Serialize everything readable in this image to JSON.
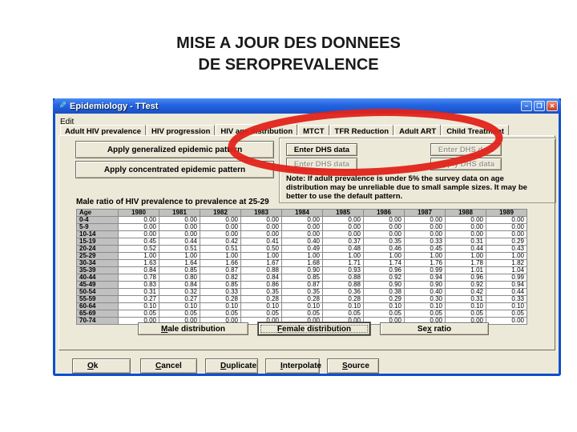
{
  "slide": {
    "title_line1": "MISE A JOUR DES DONNEES",
    "title_line2": "DE SEROPREVALENCE"
  },
  "window": {
    "title": "Epidemiology - TTest",
    "menu": [
      "Edit"
    ],
    "controls": {
      "minimize": "–",
      "maximize": "❐",
      "close": "✕"
    },
    "tabs": [
      {
        "label": "Adult HIV prevalence",
        "active": false
      },
      {
        "label": "HIV progression",
        "active": false
      },
      {
        "label": "HIV age distribution",
        "active": true
      },
      {
        "label": "MTCT",
        "active": false
      },
      {
        "label": "TFR Reduction",
        "active": false
      },
      {
        "label": "Adult ART",
        "active": false
      },
      {
        "label": "Child Treatment",
        "active": false
      }
    ]
  },
  "pattern_buttons": {
    "generalized": "Apply generalized epidemic pattern",
    "concentrated": "Apply concentrated epidemic pattern"
  },
  "dhs_panel": {
    "enter_dhs_enabled": "Enter DHS data",
    "enter_dhs_disabled_left": "Enter DHS data",
    "enter_dhs_disabled_right": "Enter DHS data",
    "apply_dhs_disabled": "Apply DHS data",
    "note": "Note: If adult prevalence is under 5% the survey data on age distribution may be unreliable due to small sample sizes. It may be better to use the default pattern."
  },
  "table": {
    "title": "Male ratio of HIV prevalence to prevalence at 25-29",
    "columns": [
      "Age",
      "1980",
      "1981",
      "1982",
      "1983",
      "1984",
      "1985",
      "1986",
      "1987",
      "1988",
      "1989"
    ],
    "rows": [
      {
        "age": "0-4",
        "values": [
          0.0,
          0.0,
          0.0,
          0.0,
          0.0,
          0.0,
          0.0,
          0.0,
          0.0,
          0.0
        ]
      },
      {
        "age": "5-9",
        "values": [
          0.0,
          0.0,
          0.0,
          0.0,
          0.0,
          0.0,
          0.0,
          0.0,
          0.0,
          0.0
        ]
      },
      {
        "age": "10-14",
        "values": [
          0.0,
          0.0,
          0.0,
          0.0,
          0.0,
          0.0,
          0.0,
          0.0,
          0.0,
          0.0
        ]
      },
      {
        "age": "15-19",
        "values": [
          0.45,
          0.44,
          0.42,
          0.41,
          0.4,
          0.37,
          0.35,
          0.33,
          0.31,
          0.29
        ]
      },
      {
        "age": "20-24",
        "values": [
          0.52,
          0.51,
          0.51,
          0.5,
          0.49,
          0.48,
          0.46,
          0.45,
          0.44,
          0.43
        ]
      },
      {
        "age": "25-29",
        "values": [
          1.0,
          1.0,
          1.0,
          1.0,
          1.0,
          1.0,
          1.0,
          1.0,
          1.0,
          1.0
        ]
      },
      {
        "age": "30-34",
        "values": [
          1.63,
          1.64,
          1.66,
          1.67,
          1.68,
          1.71,
          1.74,
          1.76,
          1.78,
          1.82
        ]
      },
      {
        "age": "35-39",
        "values": [
          0.84,
          0.85,
          0.87,
          0.88,
          0.9,
          0.93,
          0.96,
          0.99,
          1.01,
          1.04
        ]
      },
      {
        "age": "40-44",
        "values": [
          0.78,
          0.8,
          0.82,
          0.84,
          0.85,
          0.88,
          0.92,
          0.94,
          0.96,
          0.99
        ]
      },
      {
        "age": "45-49",
        "values": [
          0.83,
          0.84,
          0.85,
          0.86,
          0.87,
          0.88,
          0.9,
          0.9,
          0.92,
          0.94
        ]
      },
      {
        "age": "50-54",
        "values": [
          0.31,
          0.32,
          0.33,
          0.35,
          0.35,
          0.36,
          0.38,
          0.4,
          0.42,
          0.44
        ]
      },
      {
        "age": "55-59",
        "values": [
          0.27,
          0.27,
          0.28,
          0.28,
          0.28,
          0.28,
          0.29,
          0.3,
          0.31,
          0.33
        ]
      },
      {
        "age": "60-64",
        "values": [
          0.1,
          0.1,
          0.1,
          0.1,
          0.1,
          0.1,
          0.1,
          0.1,
          0.1,
          0.1
        ]
      },
      {
        "age": "65-69",
        "values": [
          0.05,
          0.05,
          0.05,
          0.05,
          0.05,
          0.05,
          0.05,
          0.05,
          0.05,
          0.05
        ]
      },
      {
        "age": "70-74",
        "values": [
          0.0,
          0.0,
          0.0,
          0.0,
          0.0,
          0.0,
          0.0,
          0.0,
          0.0,
          0.0
        ]
      }
    ]
  },
  "distribution_buttons": {
    "male": "Male distribution",
    "female": "Female distribution",
    "sex_ratio": "Sex ratio"
  },
  "bottom_buttons": {
    "ok": "Ok",
    "cancel": "Cancel",
    "duplicate": "Duplicate",
    "interpolate": "Interpolate",
    "source": "Source"
  },
  "colors": {
    "annotation_red": "#E2231A",
    "titlebar_blue": "#2463E0",
    "client_bg": "#ECE9D8",
    "table_header_bg": "#C0C0C0"
  }
}
